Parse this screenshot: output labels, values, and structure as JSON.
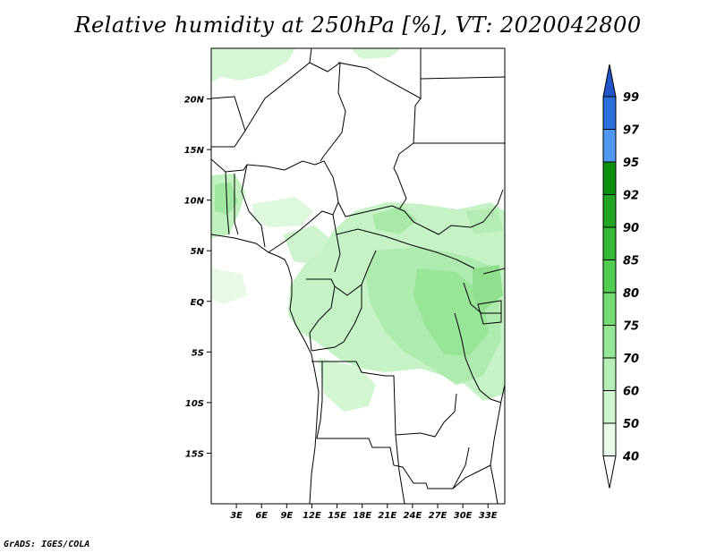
{
  "title": "Relative humidity at 250hPa [%], VT: 2020042800",
  "footer": "GrADS: IGES/COLA",
  "map": {
    "lon_range": [
      0,
      35
    ],
    "lat_range": [
      -20,
      25
    ],
    "lat_ticks": [
      "20N",
      "15N",
      "10N",
      "5N",
      "EQ",
      "5S",
      "10S",
      "15S"
    ],
    "lon_ticks": [
      "3E",
      "6E",
      "9E",
      "12E",
      "15E",
      "18E",
      "21E",
      "24E",
      "27E",
      "30E",
      "33E"
    ]
  },
  "colorbar": {
    "labels": [
      "99",
      "97",
      "95",
      "92",
      "90",
      "85",
      "80",
      "75",
      "70",
      "60",
      "50",
      "40"
    ],
    "colors": [
      "#1f55c9",
      "#2a6fdb",
      "#4f97f0",
      "#0f8f0f",
      "#22a522",
      "#35b935",
      "#50cd50",
      "#72dc72",
      "#95e695",
      "#b5efb5",
      "#d0f6d0",
      "#e8fbe8"
    ]
  }
}
